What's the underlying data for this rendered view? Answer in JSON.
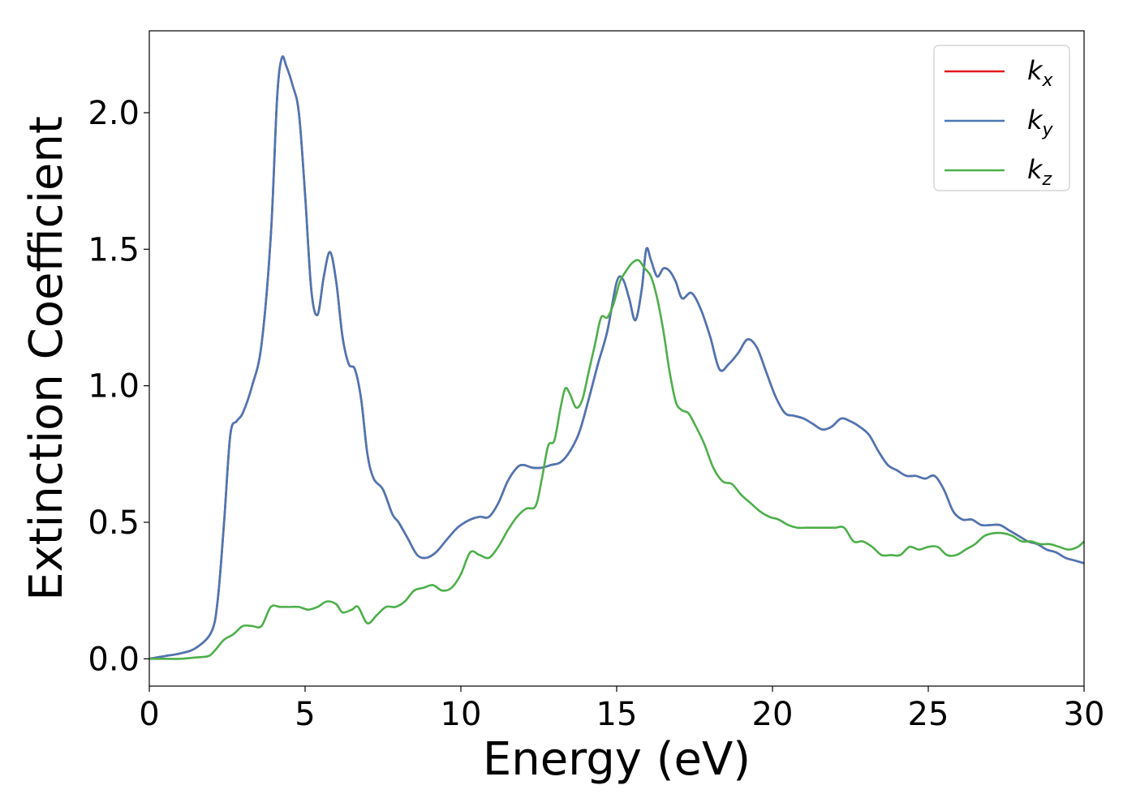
{
  "chart_data": {
    "type": "line",
    "title": "",
    "xlabel": "Energy (eV)",
    "ylabel": "Extinction Coefficient",
    "xlim": [
      0,
      30
    ],
    "ylim": [
      -0.1,
      2.3
    ],
    "xticks": [
      0,
      5,
      10,
      15,
      20,
      25,
      30
    ],
    "xtick_labels": [
      "0",
      "5",
      "10",
      "15",
      "20",
      "25",
      "30"
    ],
    "yticks": [
      0.0,
      0.5,
      1.0,
      1.5,
      2.0
    ],
    "ytick_labels": [
      "0.0",
      "0.5",
      "1.0",
      "1.5",
      "2.0"
    ],
    "grid": false,
    "legend_position": "top-right",
    "series": [
      {
        "name": "k",
        "subscript": "x",
        "color": "#e41a1c",
        "x": [
          0,
          0.5,
          1,
          1.5,
          2,
          2.2,
          2.4,
          2.6,
          2.8,
          3.0,
          3.3,
          3.6,
          3.9,
          4.1,
          4.25,
          4.4,
          4.6,
          4.8,
          5.0,
          5.2,
          5.4,
          5.6,
          5.8,
          6.0,
          6.2,
          6.4,
          6.6,
          6.8,
          7.0,
          7.2,
          7.5,
          7.8,
          8.0,
          8.3,
          8.6,
          8.9,
          9.2,
          9.5,
          9.8,
          10.0,
          10.3,
          10.6,
          10.9,
          11.2,
          11.5,
          11.8,
          12.0,
          12.3,
          12.6,
          12.9,
          13.2,
          13.5,
          13.8,
          14.1,
          14.4,
          14.7,
          15.0,
          15.2,
          15.4,
          15.6,
          15.8,
          15.95,
          16.1,
          16.3,
          16.5,
          16.7,
          16.9,
          17.1,
          17.4,
          17.7,
          18.0,
          18.3,
          18.6,
          18.9,
          19.2,
          19.5,
          19.8,
          20.1,
          20.4,
          20.7,
          21.0,
          21.3,
          21.6,
          21.9,
          22.2,
          22.5,
          22.8,
          23.1,
          23.4,
          23.7,
          24.0,
          24.3,
          24.6,
          24.9,
          25.2,
          25.5,
          25.8,
          26.1,
          26.4,
          26.7,
          27.0,
          27.3,
          27.6,
          27.9,
          28.2,
          28.5,
          28.8,
          29.1,
          29.4,
          29.7,
          30.0
        ],
        "y": [
          0.0,
          0.01,
          0.02,
          0.04,
          0.1,
          0.22,
          0.5,
          0.82,
          0.87,
          0.9,
          1.0,
          1.15,
          1.55,
          2.05,
          2.2,
          2.17,
          2.1,
          2.0,
          1.7,
          1.35,
          1.26,
          1.4,
          1.49,
          1.38,
          1.18,
          1.08,
          1.06,
          0.95,
          0.75,
          0.66,
          0.62,
          0.53,
          0.5,
          0.44,
          0.38,
          0.37,
          0.39,
          0.43,
          0.47,
          0.49,
          0.51,
          0.52,
          0.52,
          0.57,
          0.65,
          0.7,
          0.71,
          0.7,
          0.7,
          0.71,
          0.72,
          0.76,
          0.83,
          0.95,
          1.08,
          1.2,
          1.38,
          1.39,
          1.32,
          1.24,
          1.35,
          1.5,
          1.46,
          1.4,
          1.43,
          1.42,
          1.38,
          1.32,
          1.34,
          1.28,
          1.18,
          1.06,
          1.08,
          1.12,
          1.17,
          1.14,
          1.05,
          0.96,
          0.9,
          0.89,
          0.88,
          0.86,
          0.84,
          0.85,
          0.88,
          0.87,
          0.85,
          0.82,
          0.76,
          0.71,
          0.69,
          0.67,
          0.67,
          0.66,
          0.67,
          0.62,
          0.54,
          0.51,
          0.51,
          0.49,
          0.49,
          0.49,
          0.47,
          0.45,
          0.43,
          0.42,
          0.4,
          0.39,
          0.37,
          0.36,
          0.35
        ]
      },
      {
        "name": "k",
        "subscript": "y",
        "color": "#4a77b5",
        "x": [
          0,
          0.5,
          1,
          1.5,
          2,
          2.2,
          2.4,
          2.6,
          2.8,
          3.0,
          3.3,
          3.6,
          3.9,
          4.1,
          4.25,
          4.4,
          4.6,
          4.8,
          5.0,
          5.2,
          5.4,
          5.6,
          5.8,
          6.0,
          6.2,
          6.4,
          6.6,
          6.8,
          7.0,
          7.2,
          7.5,
          7.8,
          8.0,
          8.3,
          8.6,
          8.9,
          9.2,
          9.5,
          9.8,
          10.0,
          10.3,
          10.6,
          10.9,
          11.2,
          11.5,
          11.8,
          12.0,
          12.3,
          12.6,
          12.9,
          13.2,
          13.5,
          13.8,
          14.1,
          14.4,
          14.7,
          15.0,
          15.2,
          15.4,
          15.6,
          15.8,
          15.95,
          16.1,
          16.3,
          16.5,
          16.7,
          16.9,
          17.1,
          17.4,
          17.7,
          18.0,
          18.3,
          18.6,
          18.9,
          19.2,
          19.5,
          19.8,
          20.1,
          20.4,
          20.7,
          21.0,
          21.3,
          21.6,
          21.9,
          22.2,
          22.5,
          22.8,
          23.1,
          23.4,
          23.7,
          24.0,
          24.3,
          24.6,
          24.9,
          25.2,
          25.5,
          25.8,
          26.1,
          26.4,
          26.7,
          27.0,
          27.3,
          27.6,
          27.9,
          28.2,
          28.5,
          28.8,
          29.1,
          29.4,
          29.7,
          30.0
        ],
        "y": [
          0.0,
          0.01,
          0.02,
          0.04,
          0.1,
          0.22,
          0.5,
          0.82,
          0.87,
          0.9,
          1.0,
          1.15,
          1.55,
          2.05,
          2.2,
          2.17,
          2.1,
          2.0,
          1.7,
          1.35,
          1.26,
          1.4,
          1.49,
          1.38,
          1.18,
          1.08,
          1.06,
          0.95,
          0.75,
          0.66,
          0.62,
          0.53,
          0.5,
          0.44,
          0.38,
          0.37,
          0.39,
          0.43,
          0.47,
          0.49,
          0.51,
          0.52,
          0.52,
          0.57,
          0.65,
          0.7,
          0.71,
          0.7,
          0.7,
          0.71,
          0.72,
          0.76,
          0.83,
          0.95,
          1.08,
          1.2,
          1.38,
          1.39,
          1.32,
          1.24,
          1.35,
          1.5,
          1.46,
          1.4,
          1.43,
          1.42,
          1.38,
          1.32,
          1.34,
          1.28,
          1.18,
          1.06,
          1.08,
          1.12,
          1.17,
          1.14,
          1.05,
          0.96,
          0.9,
          0.89,
          0.88,
          0.86,
          0.84,
          0.85,
          0.88,
          0.87,
          0.85,
          0.82,
          0.76,
          0.71,
          0.69,
          0.67,
          0.67,
          0.66,
          0.67,
          0.62,
          0.54,
          0.51,
          0.51,
          0.49,
          0.49,
          0.49,
          0.47,
          0.45,
          0.43,
          0.42,
          0.4,
          0.39,
          0.37,
          0.36,
          0.35
        ]
      },
      {
        "name": "k",
        "subscript": "z",
        "color": "#4daf4a",
        "x": [
          0,
          0.5,
          1,
          1.5,
          1.9,
          2.1,
          2.4,
          2.7,
          3.0,
          3.3,
          3.6,
          3.9,
          4.2,
          4.5,
          4.8,
          5.1,
          5.4,
          5.7,
          6.0,
          6.2,
          6.5,
          6.7,
          7.0,
          7.3,
          7.6,
          7.9,
          8.2,
          8.5,
          8.8,
          9.1,
          9.4,
          9.7,
          10.0,
          10.3,
          10.6,
          10.9,
          11.2,
          11.5,
          11.8,
          12.1,
          12.4,
          12.6,
          12.8,
          13.0,
          13.2,
          13.35,
          13.5,
          13.7,
          13.9,
          14.1,
          14.3,
          14.5,
          14.7,
          14.9,
          15.1,
          15.3,
          15.5,
          15.7,
          15.9,
          16.1,
          16.3,
          16.5,
          16.7,
          16.9,
          17.1,
          17.3,
          17.5,
          17.8,
          18.1,
          18.4,
          18.7,
          19.0,
          19.3,
          19.6,
          19.9,
          20.2,
          20.5,
          20.8,
          21.1,
          21.4,
          21.7,
          22.0,
          22.3,
          22.6,
          22.9,
          23.2,
          23.5,
          23.8,
          24.1,
          24.4,
          24.7,
          25.0,
          25.3,
          25.6,
          25.9,
          26.2,
          26.5,
          26.8,
          27.1,
          27.4,
          27.7,
          28.0,
          28.3,
          28.6,
          28.9,
          29.2,
          29.5,
          29.8,
          30.0
        ],
        "y": [
          0.0,
          0.0,
          0.0,
          0.005,
          0.01,
          0.03,
          0.07,
          0.09,
          0.12,
          0.12,
          0.12,
          0.19,
          0.19,
          0.19,
          0.19,
          0.18,
          0.19,
          0.21,
          0.2,
          0.17,
          0.18,
          0.19,
          0.13,
          0.16,
          0.19,
          0.19,
          0.21,
          0.25,
          0.26,
          0.27,
          0.25,
          0.26,
          0.31,
          0.39,
          0.38,
          0.37,
          0.41,
          0.47,
          0.52,
          0.55,
          0.56,
          0.66,
          0.78,
          0.8,
          0.92,
          0.99,
          0.97,
          0.92,
          0.95,
          1.05,
          1.15,
          1.25,
          1.25,
          1.3,
          1.38,
          1.42,
          1.45,
          1.46,
          1.43,
          1.4,
          1.32,
          1.2,
          1.05,
          0.94,
          0.91,
          0.9,
          0.86,
          0.79,
          0.7,
          0.65,
          0.64,
          0.6,
          0.57,
          0.54,
          0.52,
          0.51,
          0.49,
          0.48,
          0.48,
          0.48,
          0.48,
          0.48,
          0.48,
          0.43,
          0.43,
          0.41,
          0.38,
          0.38,
          0.38,
          0.41,
          0.4,
          0.41,
          0.41,
          0.38,
          0.38,
          0.4,
          0.42,
          0.45,
          0.46,
          0.46,
          0.45,
          0.43,
          0.43,
          0.42,
          0.42,
          0.41,
          0.4,
          0.41,
          0.43
        ]
      }
    ]
  }
}
